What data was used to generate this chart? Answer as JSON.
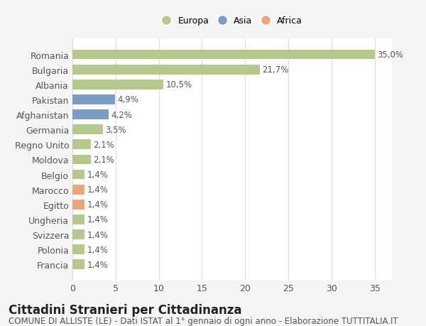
{
  "categories": [
    "Francia",
    "Polonia",
    "Svizzera",
    "Ungheria",
    "Egitto",
    "Marocco",
    "Belgio",
    "Moldova",
    "Regno Unito",
    "Germania",
    "Afghanistan",
    "Pakistan",
    "Albania",
    "Bulgaria",
    "Romania"
  ],
  "values": [
    1.4,
    1.4,
    1.4,
    1.4,
    1.4,
    1.4,
    1.4,
    2.1,
    2.1,
    3.5,
    4.2,
    4.9,
    10.5,
    21.7,
    35.0
  ],
  "labels": [
    "1,4%",
    "1,4%",
    "1,4%",
    "1,4%",
    "1,4%",
    "1,4%",
    "1,4%",
    "2,1%",
    "2,1%",
    "3,5%",
    "4,2%",
    "4,9%",
    "10,5%",
    "21,7%",
    "35,0%"
  ],
  "colors": [
    "#b5c98e",
    "#b5c98e",
    "#b5c98e",
    "#b5c98e",
    "#e8a87c",
    "#e8a87c",
    "#b5c98e",
    "#b5c98e",
    "#b5c98e",
    "#b5c98e",
    "#7b9cc4",
    "#7b9cc4",
    "#b5c98e",
    "#b5c98e",
    "#b5c98e"
  ],
  "legend_labels": [
    "Europa",
    "Asia",
    "Africa"
  ],
  "legend_colors": [
    "#b5c98e",
    "#7b9cc4",
    "#e8a87c"
  ],
  "title": "Cittadini Stranieri per Cittadinanza",
  "subtitle": "COMUNE DI ALLISTE (LE) - Dati ISTAT al 1° gennaio di ogni anno - Elaborazione TUTTITALIA.IT",
  "xlim": [
    0,
    37
  ],
  "xticks": [
    0,
    5,
    10,
    15,
    20,
    25,
    30,
    35
  ],
  "background_color": "#f5f5f5",
  "plot_background": "#ffffff",
  "grid_color": "#dddddd",
  "bar_height": 0.65,
  "title_fontsize": 12,
  "subtitle_fontsize": 8.5,
  "tick_fontsize": 9,
  "label_fontsize": 8.5
}
